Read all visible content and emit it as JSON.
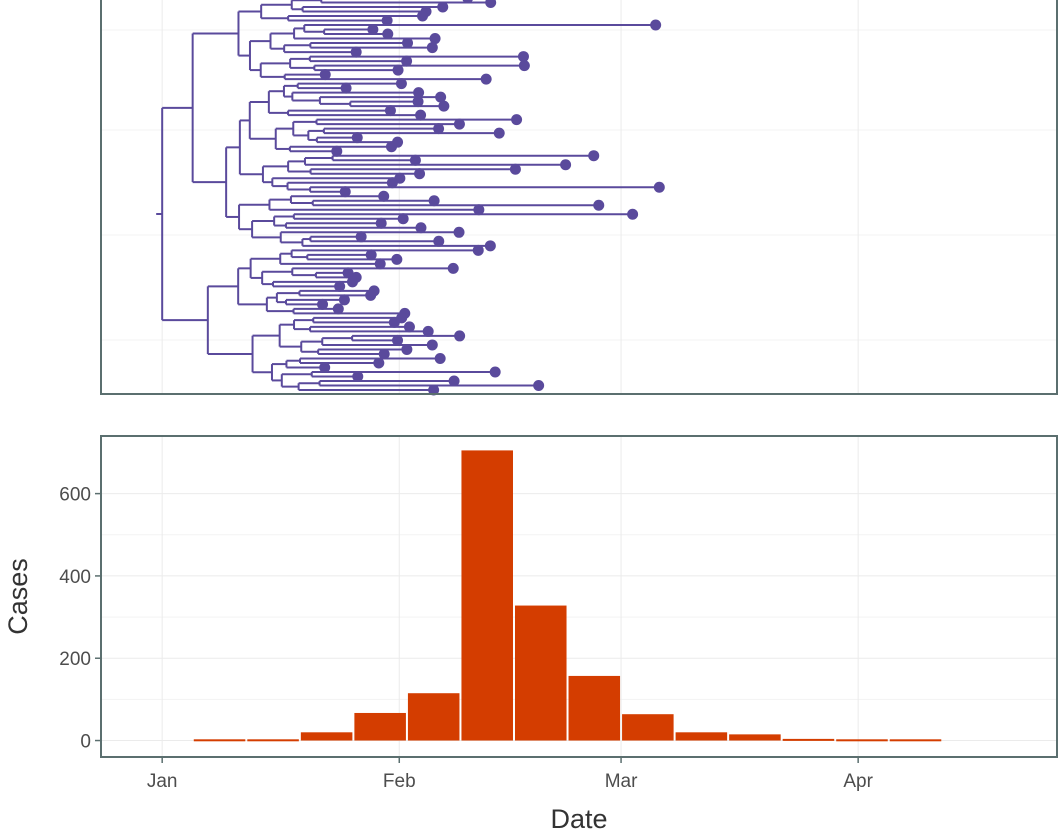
{
  "chart_data": [
    {
      "type": "tree",
      "description_role": "time-scaled phylogenetic tree aligned to the date axis",
      "x_axis": {
        "min": "2019-12-24",
        "max": "2020-04-27"
      },
      "color": "#5a4a9c",
      "root_date": "2020-01-01",
      "tip_count": 88,
      "latest_tip_date": "2020-03-06",
      "grid": true
    },
    {
      "type": "bar",
      "xlabel": "Date",
      "ylabel": "Cases",
      "x_ticks": [
        {
          "date": "2020-01-01",
          "label": "Jan"
        },
        {
          "date": "2020-02-01",
          "label": "Feb"
        },
        {
          "date": "2020-03-01",
          "label": "Mar"
        },
        {
          "date": "2020-04-01",
          "label": "Apr"
        }
      ],
      "x_axis": {
        "min": "2019-12-24",
        "max": "2020-04-27"
      },
      "y_ticks": [
        0,
        200,
        400,
        600
      ],
      "ylim": [
        -40,
        740
      ],
      "bin_width_days": 7,
      "color": "#d43d00",
      "grid": true,
      "bins": [
        {
          "start": "2020-01-05",
          "value": 3
        },
        {
          "start": "2020-01-12",
          "value": 3
        },
        {
          "start": "2020-01-19",
          "value": 20
        },
        {
          "start": "2020-01-26",
          "value": 67
        },
        {
          "start": "2020-02-02",
          "value": 115
        },
        {
          "start": "2020-02-09",
          "value": 705
        },
        {
          "start": "2020-02-16",
          "value": 328
        },
        {
          "start": "2020-02-23",
          "value": 157
        },
        {
          "start": "2020-03-01",
          "value": 64
        },
        {
          "start": "2020-03-08",
          "value": 20
        },
        {
          "start": "2020-03-15",
          "value": 15
        },
        {
          "start": "2020-03-22",
          "value": 4
        },
        {
          "start": "2020-03-29",
          "value": 3
        },
        {
          "start": "2020-04-05",
          "value": 3
        }
      ]
    }
  ]
}
